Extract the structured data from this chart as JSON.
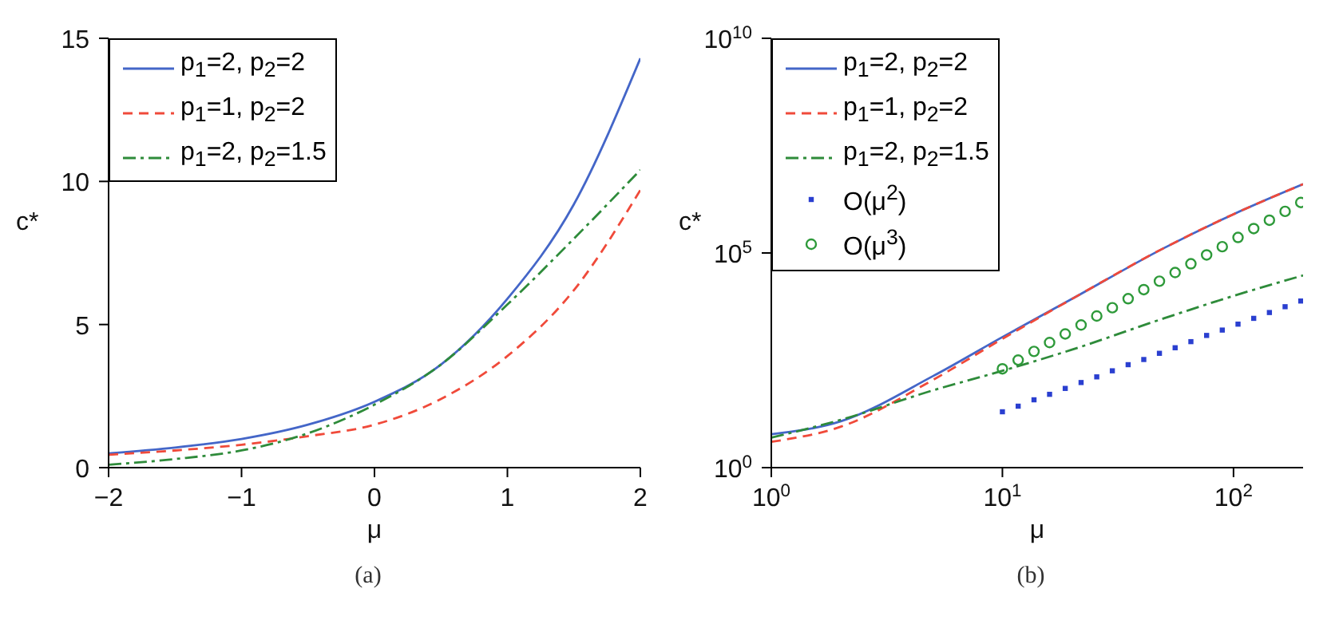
{
  "chart_data": [
    {
      "type": "line",
      "xlabel": "μ",
      "ylabel": "c*",
      "annotations": [
        "(a)"
      ],
      "legend": "top left",
      "grid": false,
      "x": [
        -2,
        -1.5,
        -1,
        -0.5,
        0,
        0.5,
        1,
        1.5,
        2
      ],
      "xlim": [
        -2,
        2
      ],
      "xticks": [
        {
          "value": -2,
          "label": "−2"
        },
        {
          "value": -1,
          "label": "−1"
        },
        0,
        1,
        2
      ],
      "ylim": [
        0,
        15
      ],
      "yticks": [
        0,
        5,
        10,
        15
      ],
      "series": [
        {
          "name": "p$_{1}$=2, p$_{2}$=2",
          "color": "#4466c8",
          "line_style": "solid",
          "values": [
            0.5,
            0.7,
            1.0,
            1.5,
            2.3,
            3.6,
            5.9,
            9.2,
            14.3
          ]
        },
        {
          "name": "p$_{1}$=1, p$_{2}$=2",
          "color": "#f04a3a",
          "line_style": "dashed",
          "values": [
            0.45,
            0.6,
            0.8,
            1.1,
            1.5,
            2.4,
            3.9,
            6.2,
            9.7
          ]
        },
        {
          "name": "p$_{1}$=2, p$_{2}$=1.5",
          "color": "#2e8b3a",
          "line_style": "dashdot",
          "values": [
            0.1,
            0.3,
            0.6,
            1.2,
            2.2,
            3.6,
            5.7,
            8.0,
            10.4
          ]
        }
      ]
    },
    {
      "type": "line",
      "xlabel": "μ",
      "ylabel": "c*",
      "annotations": [
        "(b)"
      ],
      "legend": "top left",
      "grid": false,
      "log": "xy",
      "xlim": [
        1,
        200
      ],
      "xticks": [
        {
          "value": 1,
          "label": "10$^{0}$"
        },
        {
          "value": 10,
          "label": "10$^{1}$"
        },
        {
          "value": 100,
          "label": "10$^{2}$"
        }
      ],
      "ylim": [
        1,
        10000000000
      ],
      "yticks": [
        {
          "value": 1,
          "label": "10$^{0}$"
        },
        {
          "value": 100000,
          "label": "10$^{5}$"
        },
        {
          "value": 10000000000,
          "label": "10$^{10}$"
        }
      ],
      "series": [
        {
          "name": "p$_{1}$=2, p$_{2}$=2",
          "color": "#4466c8",
          "line_style": "solid",
          "x": [
            1,
            2,
            5,
            10,
            20,
            50,
            100,
            200
          ],
          "values": [
            6,
            12,
            135,
            1100,
            8500,
            130000,
            800000,
            4000000
          ]
        },
        {
          "name": "p$_{1}$=1, p$_{2}$=2",
          "color": "#f04a3a",
          "line_style": "dashed",
          "x": [
            1,
            2,
            5,
            10,
            20,
            50,
            100,
            200
          ],
          "values": [
            4,
            9,
            110,
            1000,
            8500,
            130000,
            800000,
            4000000
          ]
        },
        {
          "name": "p$_{1}$=2, p$_{2}$=1.5",
          "color": "#2e8b3a",
          "line_style": "dashdot",
          "x": [
            1,
            2,
            5,
            10,
            20,
            50,
            100,
            200
          ],
          "values": [
            5,
            13,
            63,
            180,
            560,
            3000,
            10000,
            30000
          ]
        },
        {
          "name": "O(μ$^{2}$)",
          "type": "scatter",
          "marker": "square",
          "color": "#2a3fd0",
          "x": [
            10,
            11.7,
            13.7,
            16,
            18.7,
            21.9,
            25.6,
            29.9,
            35,
            40.9,
            47.8,
            55.9,
            65.4,
            76.5,
            89.4,
            104.6,
            122.3,
            143,
            167.2,
            195.5
          ],
          "values": [
            20,
            27,
            38,
            51,
            70,
            96,
            130,
            180,
            250,
            330,
            460,
            620,
            860,
            1200,
            1600,
            2200,
            3000,
            4100,
            5600,
            7600
          ]
        },
        {
          "name": "O(μ$^{3}$)",
          "type": "scatter",
          "marker": "circle",
          "color": "#2e9a3a",
          "x": [
            10,
            11.7,
            13.7,
            16,
            18.7,
            21.9,
            25.6,
            29.9,
            35,
            40.9,
            47.8,
            55.9,
            65.4,
            76.5,
            89.4,
            104.6,
            122.3,
            143,
            167.2,
            195.5
          ],
          "values": [
            200,
            320,
            510,
            820,
            1300,
            2100,
            3400,
            5300,
            8600,
            14000,
            22000,
            35000,
            56000,
            90000,
            140000,
            230000,
            370000,
            580000,
            930000,
            1500000
          ]
        }
      ]
    }
  ]
}
